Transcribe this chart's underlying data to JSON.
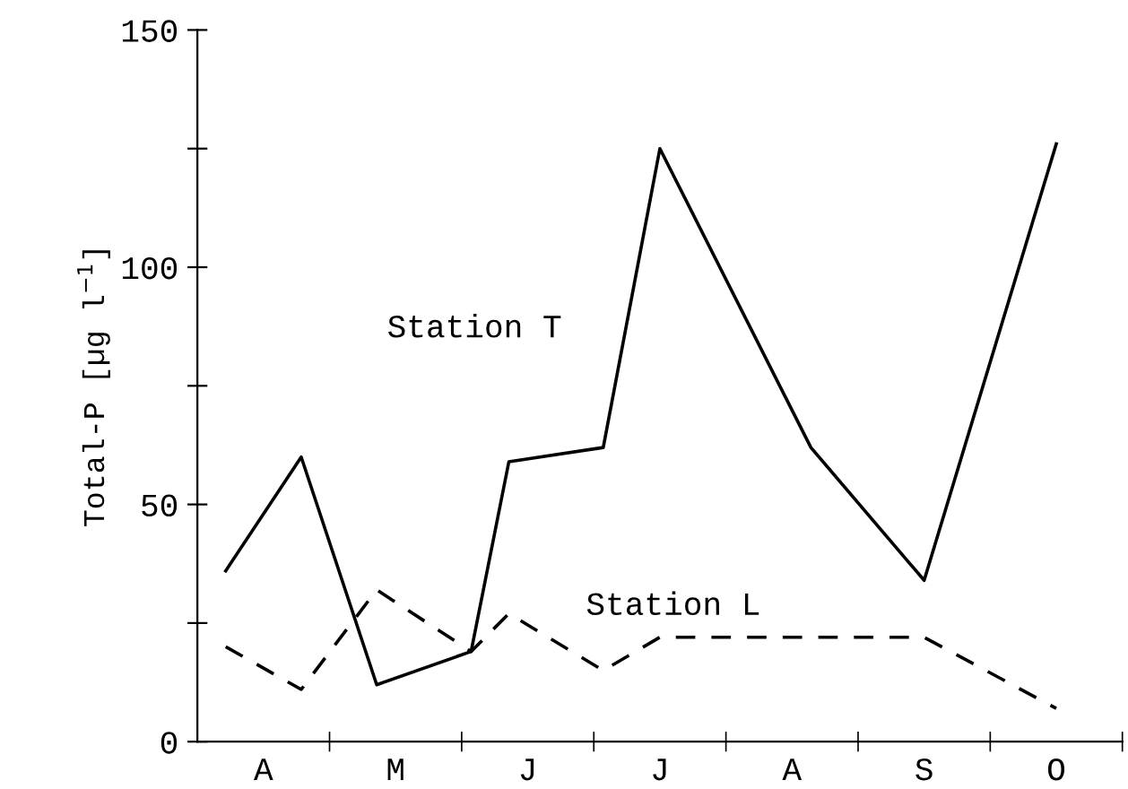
{
  "chart_data": {
    "type": "line",
    "ylabel": "Total-P [µg l$^{−1}$]",
    "categories": [
      null,
      null,
      null,
      "A",
      null,
      null,
      null,
      null,
      null,
      null,
      "M",
      null,
      null,
      null,
      null,
      null,
      null,
      "J",
      null,
      null,
      null,
      null,
      null,
      null,
      "J",
      null,
      null,
      null,
      null,
      null,
      null,
      "A",
      null,
      null,
      null,
      null,
      null,
      null,
      "S",
      null,
      null,
      null,
      null,
      null,
      null,
      "O",
      null,
      null,
      null
    ],
    "ylim": [
      0,
      150
    ],
    "yticks": [
      0,
      {
        "value": 25,
        "label": null
      },
      50,
      {
        "value": 75,
        "label": null
      },
      100,
      {
        "value": 125,
        "label": null
      },
      150
    ],
    "grid": false,
    "marker": "none",
    "series": [
      {
        "color": "#000000",
        "line_style": "solid",
        "values": [
          null,
          36,
          null,
          null,
          null,
          60,
          null,
          null,
          null,
          12,
          null,
          null,
          null,
          null,
          19,
          null,
          59,
          null,
          null,
          null,
          null,
          62,
          null,
          null,
          125,
          null,
          null,
          null,
          null,
          null,
          null,
          null,
          62,
          null,
          null,
          null,
          null,
          null,
          34,
          null,
          null,
          null,
          null,
          null,
          null,
          126,
          null,
          null,
          null
        ]
      },
      {
        "color": "#000000",
        "line_style": "dashed",
        "values": [
          null,
          20,
          null,
          null,
          null,
          11,
          null,
          null,
          null,
          32,
          null,
          null,
          null,
          null,
          19,
          null,
          27,
          null,
          null,
          null,
          null,
          15,
          null,
          null,
          22,
          null,
          null,
          null,
          null,
          null,
          null,
          null,
          null,
          null,
          null,
          null,
          null,
          null,
          22,
          null,
          null,
          null,
          null,
          null,
          null,
          7,
          null,
          null,
          null
        ]
      }
    ],
    "annotations": [
      "Station T",
      "Station L"
    ]
  }
}
